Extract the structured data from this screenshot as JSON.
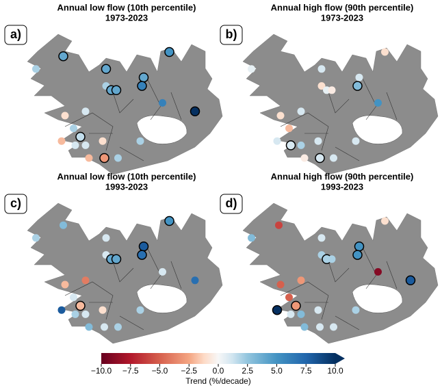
{
  "panels": [
    {
      "label": "a)",
      "title": "Annual low flow (10th percentile)",
      "period": "1973-2023",
      "values": [
        4,
        2,
        4,
        5,
        4,
        2,
        4,
        4,
        6,
        6,
        10,
        -1,
        1,
        2,
        1.5,
        -2,
        1,
        1,
        -1,
        2,
        -2,
        -3,
        2
      ],
      "significant": [
        true,
        false,
        true,
        true,
        true,
        false,
        true,
        true,
        true,
        false,
        true,
        false,
        false,
        false,
        true,
        false,
        false,
        false,
        false,
        false,
        false,
        true,
        false
      ]
    },
    {
      "label": "b)",
      "title": "Annual high flow (90th percentile)",
      "period": "1973-2023",
      "values": [
        null,
        0.5,
        1,
        -1,
        1,
        -1,
        0.5,
        -0.5,
        3,
        5,
        null,
        -1,
        1,
        -2,
        null,
        1,
        1,
        2,
        1,
        1,
        -0.5,
        1,
        1
      ],
      "significant": [
        false,
        false,
        false,
        false,
        false,
        false,
        false,
        false,
        true,
        false,
        false,
        false,
        false,
        false,
        false,
        false,
        true,
        false,
        false,
        false,
        false,
        true,
        false
      ]
    },
    {
      "label": "c)",
      "title": "Annual low flow (10th percentile)",
      "period": "1993-2023",
      "values": [
        3,
        2,
        1,
        5,
        8,
        1,
        4,
        4,
        7,
        1,
        7,
        -2,
        -4,
        1,
        -2,
        8,
        2,
        1,
        -1,
        2,
        3,
        1,
        2
      ],
      "significant": [
        false,
        false,
        false,
        true,
        true,
        false,
        true,
        true,
        true,
        false,
        false,
        false,
        false,
        false,
        true,
        false,
        false,
        false,
        false,
        false,
        false,
        false,
        false
      ]
    },
    {
      "label": "d)",
      "title": "Annual high flow (90th percentile)",
      "period": "1993-2023",
      "values": [
        -6,
        3,
        1,
        -1,
        5,
        2,
        2,
        2,
        5,
        -9,
        8,
        -5,
        -3,
        -5,
        -3,
        10,
        1,
        3,
        1,
        2,
        3,
        1,
        1
      ],
      "significant": [
        false,
        false,
        false,
        false,
        true,
        false,
        true,
        false,
        true,
        false,
        true,
        false,
        false,
        false,
        true,
        true,
        false,
        false,
        false,
        false,
        false,
        false,
        false
      ]
    }
  ],
  "stations": [
    {
      "lon": -22.2,
      "lat": 66.0
    },
    {
      "lon": -23.8,
      "lat": 65.7
    },
    {
      "lon": -19.7,
      "lat": 65.7
    },
    {
      "lon": -16.0,
      "lat": 66.1
    },
    {
      "lon": -17.5,
      "lat": 65.5
    },
    {
      "lon": -19.7,
      "lat": 65.3
    },
    {
      "lon": -19.4,
      "lat": 65.2
    },
    {
      "lon": -19.1,
      "lat": 65.2
    },
    {
      "lon": -17.6,
      "lat": 65.3
    },
    {
      "lon": -16.4,
      "lat": 64.9
    },
    {
      "lon": -14.5,
      "lat": 64.7
    },
    {
      "lon": -22.1,
      "lat": 64.6
    },
    {
      "lon": -20.9,
      "lat": 64.7
    },
    {
      "lon": -21.6,
      "lat": 64.3
    },
    {
      "lon": -21.2,
      "lat": 64.1
    },
    {
      "lon": -22.3,
      "lat": 64.0
    },
    {
      "lon": -21.5,
      "lat": 63.9
    },
    {
      "lon": -20.9,
      "lat": 63.9
    },
    {
      "lon": -19.9,
      "lat": 64.0
    },
    {
      "lon": -17.7,
      "lat": 64.0
    },
    {
      "lon": -20.7,
      "lat": 63.6
    },
    {
      "lon": -19.8,
      "lat": 63.6
    },
    {
      "lon": -19.0,
      "lat": 63.6
    }
  ],
  "colorbar": {
    "label": "Trend (%/decade)",
    "ticks": [
      {
        "value": -10,
        "label": "−10.0"
      },
      {
        "value": -7.5,
        "label": "−7.5"
      },
      {
        "value": -5,
        "label": "−5.0"
      },
      {
        "value": -2.5,
        "label": "−2.5"
      },
      {
        "value": 0,
        "label": "0.0"
      },
      2.5,
      {
        "value": 5,
        "label": "5.0"
      },
      7.5,
      {
        "value": 10,
        "label": "10.0"
      }
    ]
  }
}
